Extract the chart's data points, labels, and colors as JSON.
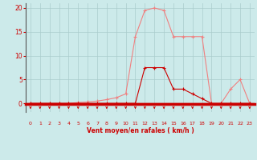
{
  "x": [
    0,
    1,
    2,
    3,
    4,
    5,
    6,
    7,
    8,
    9,
    10,
    11,
    12,
    13,
    14,
    15,
    16,
    17,
    18,
    19,
    20,
    21,
    22,
    23
  ],
  "rafales": [
    0,
    0,
    0,
    0,
    0,
    0.2,
    0.3,
    0.5,
    0.8,
    1.2,
    2.0,
    14,
    19.5,
    20,
    19.5,
    14,
    14,
    14,
    14,
    0,
    0,
    3,
    5,
    0
  ],
  "moyen": [
    0,
    0,
    0,
    0,
    0,
    0,
    0,
    0,
    0,
    0,
    0,
    0,
    7.5,
    7.5,
    7.5,
    3,
    3,
    2,
    1,
    0,
    0,
    0,
    0,
    0
  ],
  "xlabel": "Vent moyen/en rafales ( km/h )",
  "ylim": [
    0,
    21
  ],
  "xlim": [
    -0.5,
    23.5
  ],
  "yticks": [
    0,
    5,
    10,
    15,
    20
  ],
  "xticks": [
    0,
    1,
    2,
    3,
    4,
    5,
    6,
    7,
    8,
    9,
    10,
    11,
    12,
    13,
    14,
    15,
    16,
    17,
    18,
    19,
    20,
    21,
    22,
    23
  ],
  "bg_color": "#cceaea",
  "line_color_rafales": "#f08080",
  "line_color_moyen": "#cc0000",
  "grid_color": "#aacccc",
  "spine_left_color": "#555555",
  "tick_color": "#cc0000",
  "label_color": "#cc0000",
  "arrow_color": "#cc0000",
  "bottom_bar_color": "#cc0000"
}
